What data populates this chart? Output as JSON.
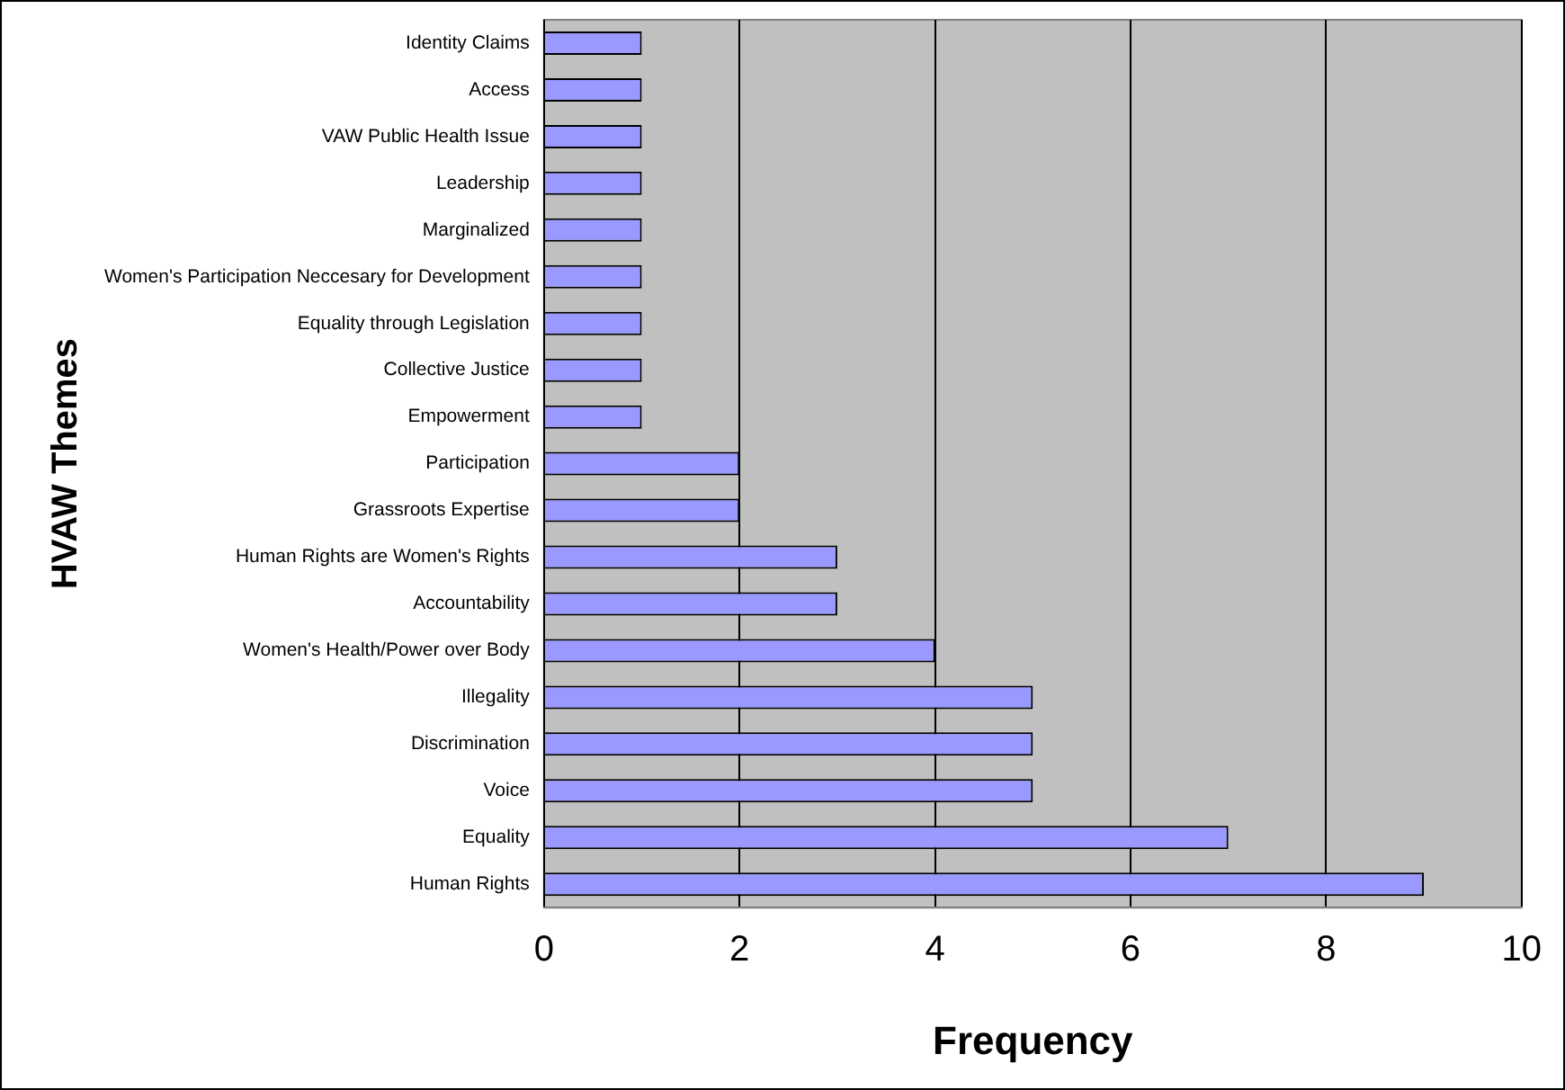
{
  "chart_data": {
    "type": "bar",
    "orientation": "horizontal",
    "xlabel": "Frequency",
    "ylabel": "HVAW Themes",
    "categories": [
      "Identity Claims",
      "Access",
      "VAW Public Health Issue",
      "Leadership",
      "Marginalized",
      "Women's Participation Neccesary for Development",
      "Equality through Legislation",
      "Collective Justice",
      "Empowerment",
      "Participation",
      "Grassroots Expertise",
      "Human Rights are Women's Rights",
      "Accountability",
      "Women's Health/Power over Body",
      "Illegality",
      "Discrimination",
      "Voice",
      "Equality",
      "Human Rights"
    ],
    "values": [
      1,
      1,
      1,
      1,
      1,
      1,
      1,
      1,
      1,
      2,
      2,
      3,
      3,
      4,
      5,
      5,
      5,
      7,
      9
    ],
    "color": "#9999ff",
    "xlim": [
      0,
      10
    ],
    "xticks": [
      0,
      2,
      4,
      6,
      8,
      10
    ],
    "grid": "x",
    "legend": false
  }
}
